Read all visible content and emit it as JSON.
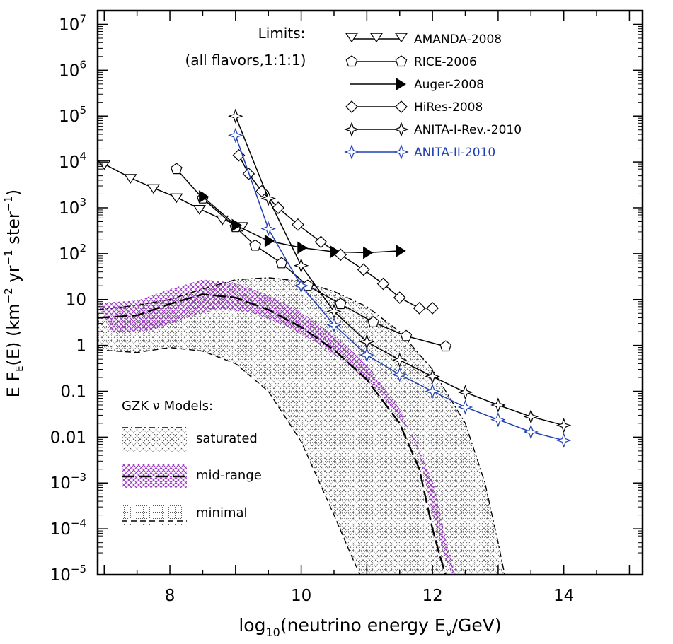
{
  "chart_data": {
    "type": "line",
    "xlabel": {
      "pre": "log",
      "sub": "10",
      "mid": "(neutrino energy E",
      "nu": "ν",
      "post": "/GeV)"
    },
    "ylabel": {
      "pre": "E F",
      "sub": "E",
      "mid": "(E)  (km",
      "sup1": "−2",
      "mid2": " yr",
      "sup2": "−1",
      "post": " ster",
      "sup3": "−1",
      "end": ")"
    },
    "xlim": [
      6.9,
      15.2
    ],
    "ylim_log10": [
      -5,
      7.3
    ],
    "y_scale": "log",
    "x_ticks": [
      {
        "v": 8,
        "label": "8"
      },
      {
        "v": 10,
        "label": "10"
      },
      {
        "v": 12,
        "label": "12"
      },
      {
        "v": 14,
        "label": "14"
      }
    ],
    "y_ticks": [
      {
        "e": 7,
        "base": "10",
        "sup": "7"
      },
      {
        "e": 6,
        "base": "10",
        "sup": "6"
      },
      {
        "e": 5,
        "base": "10",
        "sup": "5"
      },
      {
        "e": 4,
        "base": "10",
        "sup": "4"
      },
      {
        "e": 3,
        "base": "10",
        "sup": "3"
      },
      {
        "e": 2,
        "base": "10",
        "sup": "2"
      },
      {
        "e": 1,
        "base": "10",
        "sup": ""
      },
      {
        "e": 0,
        "base": "1",
        "sup": ""
      },
      {
        "e": -1,
        "base": "0.1",
        "sup": ""
      },
      {
        "e": -2,
        "base": "0.01",
        "sup": ""
      },
      {
        "e": -3,
        "base": "10",
        "sup": "−3"
      },
      {
        "e": -4,
        "base": "10",
        "sup": "−4"
      },
      {
        "e": -5,
        "base": "10",
        "sup": "−5"
      }
    ],
    "limits_title": [
      "Limits:",
      "(all flavors,1:1:1)"
    ],
    "series": [
      {
        "name": "AMANDA-2008",
        "marker": "triangle-down",
        "color": "#000000",
        "x": [
          7.0,
          7.4,
          7.75,
          8.1,
          8.45,
          8.8,
          9.1
        ],
        "y": [
          9000,
          4500,
          2700,
          1700,
          950,
          560,
          400
        ]
      },
      {
        "name": "RICE-2006",
        "marker": "pentagon",
        "color": "#000000",
        "x": [
          8.1,
          8.5,
          9.0,
          9.3,
          9.7,
          10.1,
          10.6,
          11.1,
          11.6,
          12.2
        ],
        "y": [
          7000,
          1600,
          380,
          150,
          62,
          20,
          8,
          3.2,
          1.6,
          0.95
        ]
      },
      {
        "name": "Auger-2008",
        "marker": "triangle-right-filled",
        "color": "#000000",
        "x": [
          8.5,
          9.0,
          9.5,
          10.0,
          10.5,
          11.0,
          11.5
        ],
        "y": [
          1750,
          420,
          190,
          135,
          110,
          105,
          115
        ]
      },
      {
        "name": "HiRes-2008",
        "marker": "diamond",
        "color": "#000000",
        "x": [
          9.05,
          9.2,
          9.4,
          9.65,
          9.95,
          10.3,
          10.6,
          10.95,
          11.25,
          11.5,
          11.8,
          12.0
        ],
        "y": [
          14000,
          5500,
          2300,
          1000,
          430,
          180,
          95,
          45,
          22,
          11,
          6.5,
          6.5
        ]
      },
      {
        "name": "ANITA-I-Rev.-2010",
        "marker": "star4",
        "color": "#000000",
        "x": [
          9.0,
          9.5,
          10.0,
          10.5,
          11.0,
          11.5,
          12.0,
          12.5,
          13.0,
          13.5,
          14.0
        ],
        "y": [
          100000,
          1600,
          55,
          5.5,
          1.2,
          0.48,
          0.21,
          0.095,
          0.05,
          0.028,
          0.018
        ]
      },
      {
        "name": "ANITA-II-2010",
        "marker": "star4",
        "color": "#1f3fb4",
        "x": [
          9.0,
          9.5,
          10.0,
          10.5,
          11.0,
          11.5,
          12.0,
          12.5,
          13.0,
          13.5,
          14.0
        ],
        "y": [
          38000,
          350,
          20,
          2.8,
          0.62,
          0.23,
          0.1,
          0.045,
          0.024,
          0.013,
          0.0085
        ]
      }
    ],
    "models_title": "GZK ν Models:",
    "models": [
      {
        "name": "saturated",
        "style": "dash-dot",
        "hatch": "cross",
        "color": "#000000",
        "x": [
          6.9,
          7.5,
          8.0,
          8.5,
          9.0,
          9.5,
          10.0,
          10.5,
          11.0,
          11.5,
          12.0,
          12.5,
          12.8,
          13.0,
          13.1
        ],
        "y": [
          6,
          7.5,
          10,
          17,
          27,
          30,
          25,
          15,
          7,
          2,
          0.3,
          0.02,
          0.001,
          5e-05,
          1e-05
        ]
      },
      {
        "name": "mid-range",
        "style": "long-dash",
        "hatch": "cross",
        "color": "#000000",
        "band_color": "#9b37c2",
        "x": [
          6.9,
          7.5,
          8.0,
          8.5,
          9.0,
          9.5,
          10.0,
          10.5,
          11.0,
          11.5,
          11.8,
          12.0,
          12.1,
          12.2
        ],
        "y": [
          4,
          4.5,
          8,
          13,
          11,
          6,
          2.5,
          0.8,
          0.18,
          0.02,
          0.002,
          0.0001,
          3e-05,
          1e-05
        ]
      },
      {
        "name": "minimal",
        "style": "dashed",
        "hatch": "dots",
        "color": "#000000",
        "x": [
          6.9,
          7.5,
          8.0,
          8.5,
          9.0,
          9.5,
          10.0,
          10.5,
          10.8,
          11.0,
          11.1
        ],
        "y": [
          0.8,
          0.7,
          0.9,
          0.75,
          0.4,
          0.1,
          0.008,
          0.0002,
          2e-05,
          5e-06,
          2e-06
        ]
      }
    ]
  }
}
